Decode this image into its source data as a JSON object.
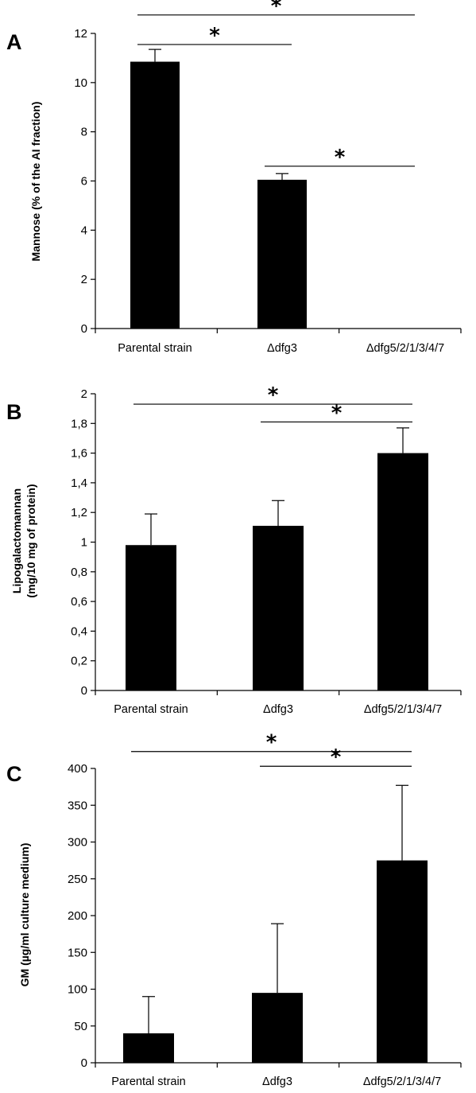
{
  "chart_data": [
    {
      "type": "bar",
      "panel": "A",
      "ylabel": "Mannose  (% of the AI fraction)",
      "ylim": [
        0,
        12
      ],
      "yticks": [
        "0",
        "2",
        "4",
        "6",
        "8",
        "10",
        "12"
      ],
      "categories": [
        "Parental strain",
        "Δdfg3",
        "Δdfg5/2/1/3/4/7"
      ],
      "values": [
        10.85,
        6.05,
        0
      ],
      "errors": [
        0.5,
        0.25,
        0
      ],
      "significance": [
        {
          "from": 0,
          "to": 2,
          "value": 12.75,
          "label": "*"
        },
        {
          "from": 0,
          "to": 1,
          "value": 11.55,
          "label": "*"
        },
        {
          "from": 1,
          "to": 2,
          "value": 6.6,
          "label": "*"
        }
      ]
    },
    {
      "type": "bar",
      "panel": "B",
      "ylabel": "Lipogalactomannan",
      "ylabel2": "(mg/10 mg of protein)",
      "ylim": [
        0,
        2
      ],
      "yticks": [
        "0",
        "0,2",
        "0,4",
        "0,6",
        "0,8",
        "1",
        "1,2",
        "1,4",
        "1,6",
        "1,8",
        "2"
      ],
      "categories": [
        "Parental strain",
        "Δdfg3",
        "Δdfg5/2/1/3/4/7"
      ],
      "values": [
        0.98,
        1.11,
        1.6
      ],
      "errors": [
        0.21,
        0.17,
        0.17
      ],
      "significance": [
        {
          "from": 0,
          "to": 2,
          "value": 1.93,
          "label": "*"
        },
        {
          "from": 1,
          "to": 2,
          "value": 1.81,
          "label": "*"
        }
      ]
    },
    {
      "type": "bar",
      "panel": "C",
      "ylabel": "GM (µg/ml culture medium)",
      "ylim": [
        0,
        400
      ],
      "yticks": [
        "0",
        "50",
        "100",
        "150",
        "200",
        "250",
        "300",
        "350",
        "400"
      ],
      "categories": [
        "Parental strain",
        "Δdfg3",
        "Δdfg5/2/1/3/4/7"
      ],
      "values": [
        40,
        95,
        275
      ],
      "errors": [
        50,
        94,
        102
      ],
      "significance": [
        {
          "from": 0,
          "to": 2,
          "value": 423,
          "label": "*"
        },
        {
          "from": 1,
          "to": 2,
          "value": 403,
          "label": "*"
        }
      ]
    }
  ]
}
